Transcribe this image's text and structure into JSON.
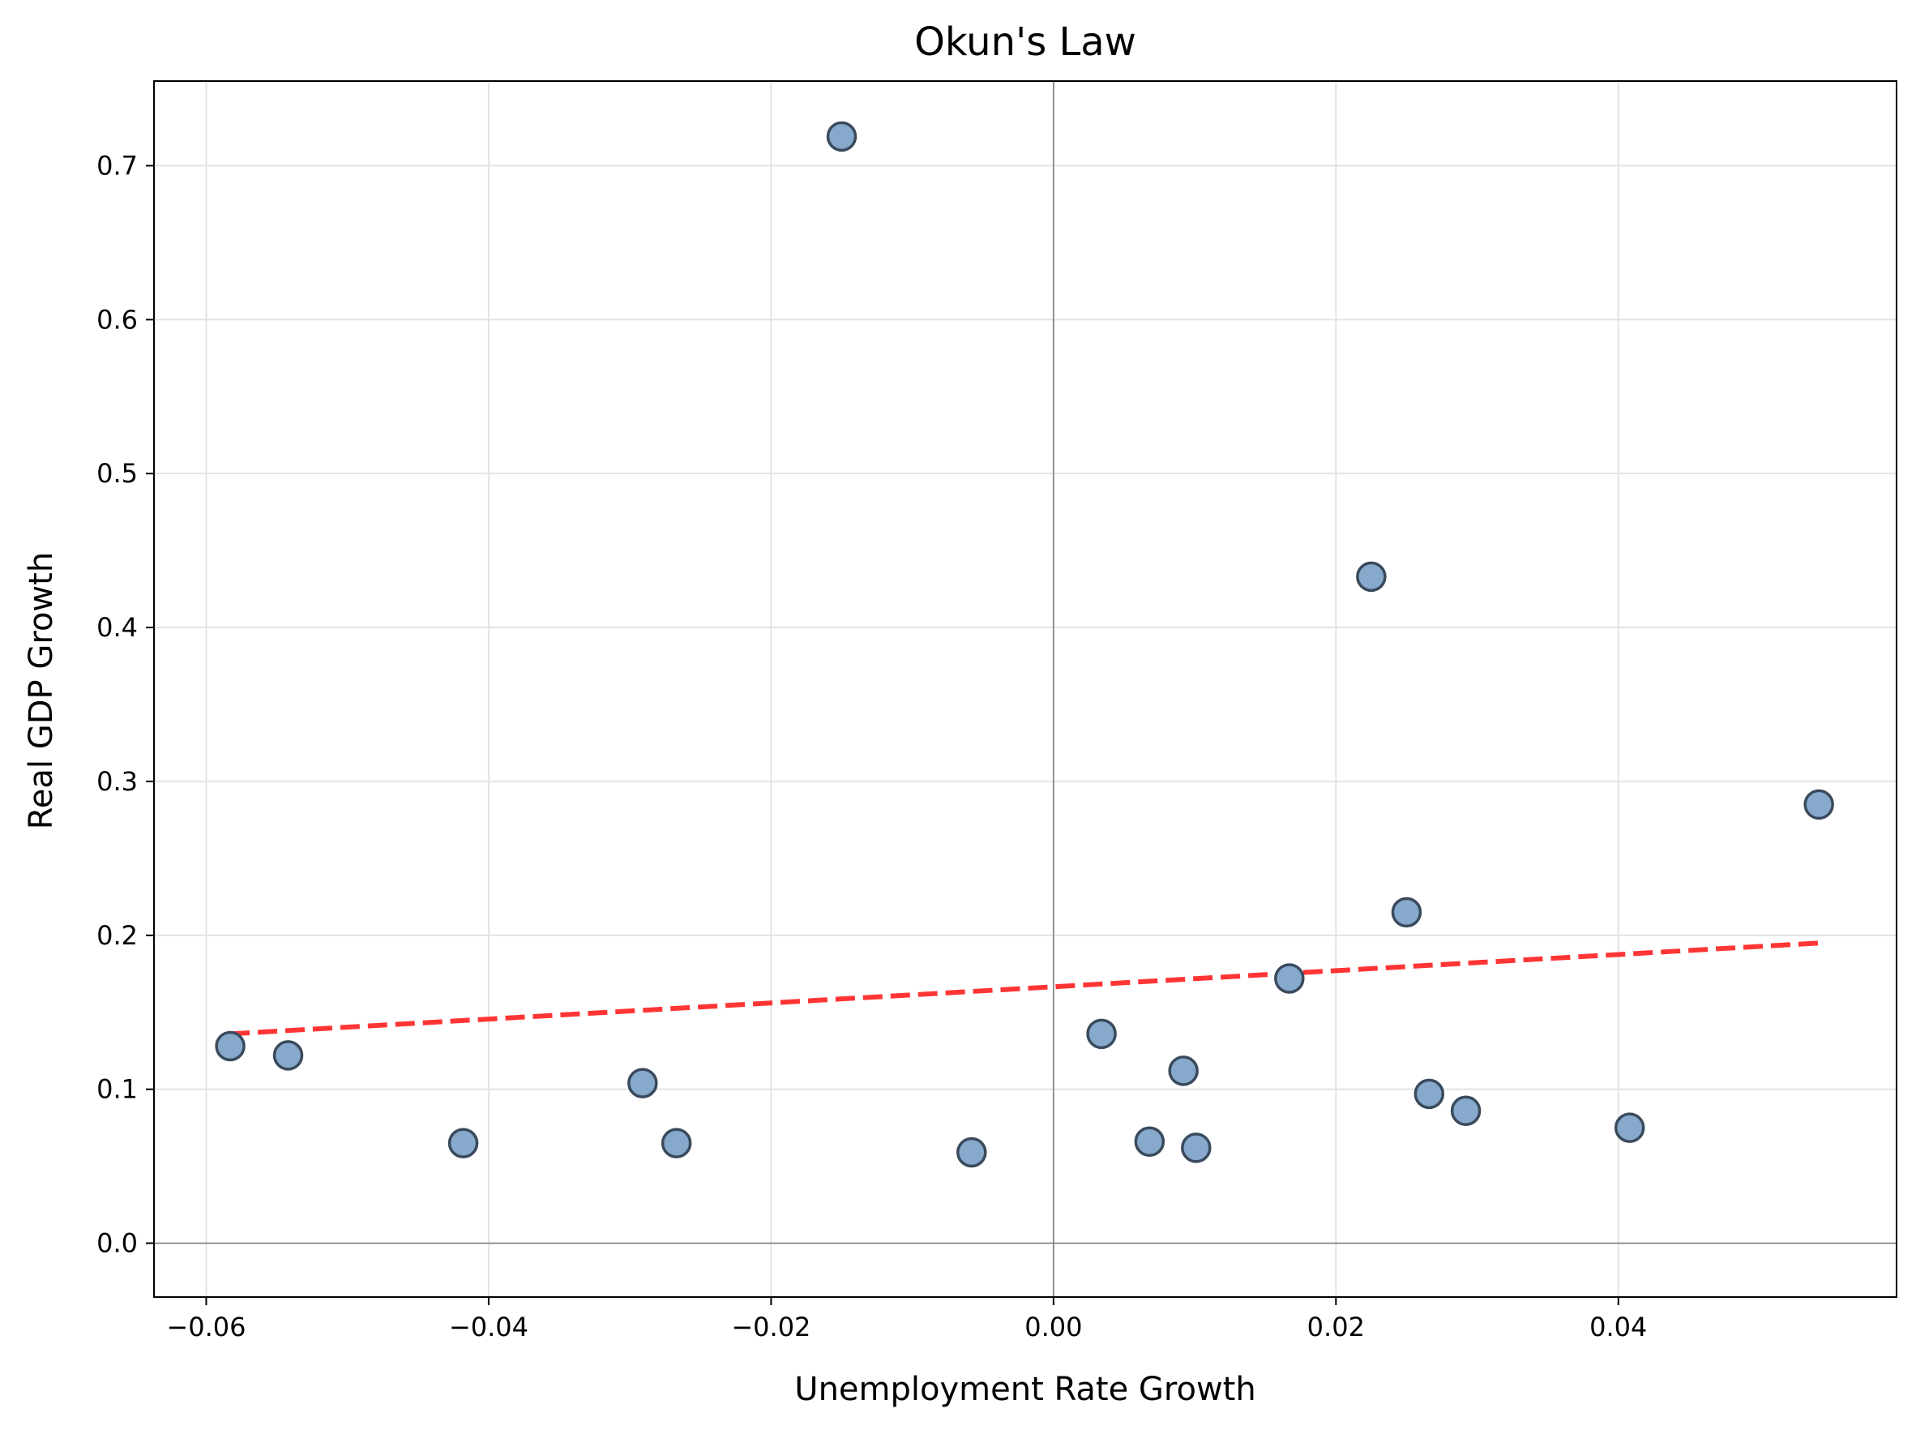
{
  "chart_data": {
    "type": "scatter",
    "title": "Okun's Law",
    "xlabel": "Unemployment Rate Growth",
    "ylabel": "Real GDP Growth",
    "xlim": [
      -0.0637,
      0.0597
    ],
    "ylim": [
      -0.035,
      0.755
    ],
    "xticks": [
      -0.06,
      -0.04,
      -0.02,
      0.0,
      0.02,
      0.04
    ],
    "xtick_labels": [
      "−0.06",
      "−0.04",
      "−0.02",
      "0.00",
      "0.02",
      "0.04"
    ],
    "yticks": [
      0.0,
      0.1,
      0.2,
      0.3,
      0.4,
      0.5,
      0.6,
      0.7
    ],
    "ytick_labels": [
      "0.0",
      "0.1",
      "0.2",
      "0.3",
      "0.4",
      "0.5",
      "0.6",
      "0.7"
    ],
    "grid": true,
    "reference_lines": {
      "x": 0,
      "y": 0
    },
    "series": [
      {
        "kind": "points",
        "color": "#86a9cc",
        "edge_color": "#3a4a5c",
        "points": [
          {
            "x": -0.0583,
            "y": 0.128
          },
          {
            "x": -0.0542,
            "y": 0.122
          },
          {
            "x": -0.0418,
            "y": 0.065
          },
          {
            "x": -0.0291,
            "y": 0.104
          },
          {
            "x": -0.0267,
            "y": 0.065
          },
          {
            "x": -0.015,
            "y": 0.719
          },
          {
            "x": -0.0058,
            "y": 0.059
          },
          {
            "x": 0.0034,
            "y": 0.136
          },
          {
            "x": 0.0068,
            "y": 0.066
          },
          {
            "x": 0.0092,
            "y": 0.112
          },
          {
            "x": 0.0101,
            "y": 0.062
          },
          {
            "x": 0.0167,
            "y": 0.172
          },
          {
            "x": 0.0225,
            "y": 0.433
          },
          {
            "x": 0.025,
            "y": 0.215
          },
          {
            "x": 0.0266,
            "y": 0.097
          },
          {
            "x": 0.0292,
            "y": 0.086
          },
          {
            "x": 0.0408,
            "y": 0.075
          },
          {
            "x": 0.0542,
            "y": 0.285
          }
        ]
      },
      {
        "kind": "fit_line",
        "color": "#ff2a2a",
        "points": [
          {
            "x": -0.0583,
            "y": 0.136
          },
          {
            "x": 0.0542,
            "y": 0.195
          }
        ]
      }
    ]
  }
}
